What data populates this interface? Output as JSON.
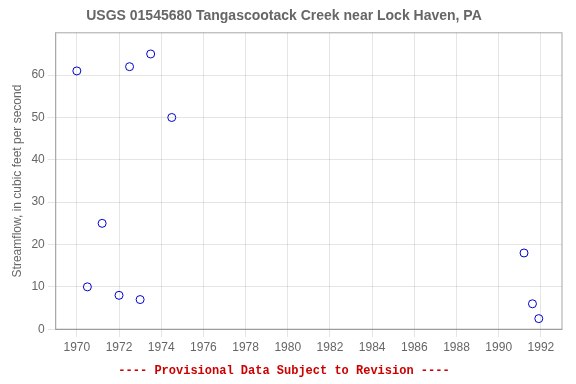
{
  "chart_data": {
    "type": "scatter",
    "title": "USGS 01545680 Tangascootack Creek near Lock Haven, PA",
    "ylabel": "Streamflow, in cubic feet per second",
    "x": [
      1970.0,
      1970.5,
      1971.2,
      1972.0,
      1972.5,
      1973.0,
      1973.5,
      1974.5,
      1991.2,
      1991.6,
      1991.9
    ],
    "values": [
      61,
      10,
      25,
      8,
      62,
      7,
      65,
      50,
      18,
      6,
      2.5
    ],
    "color": "#0000cc",
    "marker": "circle",
    "xlim": [
      1969,
      1993
    ],
    "ylim": [
      0,
      70
    ],
    "xticks": [
      1970,
      1972,
      1974,
      1976,
      1978,
      1980,
      1982,
      1984,
      1986,
      1988,
      1990,
      1992
    ],
    "yticks": [
      0,
      10,
      20,
      30,
      40,
      50,
      60
    ],
    "grid": true,
    "annotations": [
      {
        "text": "---- Provisional Data Subject to Revision ----",
        "color": "#cc0000"
      }
    ]
  }
}
